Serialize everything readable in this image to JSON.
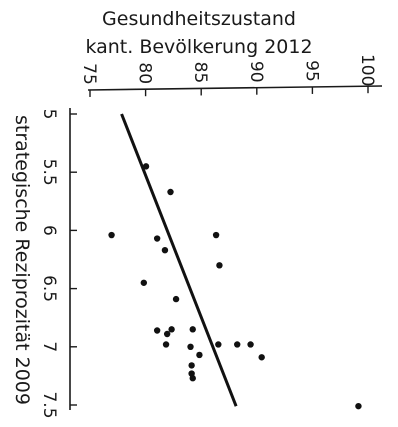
{
  "chart_data": {
    "type": "scatter",
    "title_lines": [
      "Gesundheitszustand",
      "kant. Bevölkerung 2012"
    ],
    "xlabel": "strategische Reziprozität 2009",
    "x_ticks": [
      "5",
      "5.5",
      "6",
      "6.5",
      "7",
      "7.5"
    ],
    "y_ticks": [
      "75",
      "80",
      "85",
      "90",
      "95",
      "100"
    ],
    "xlim": [
      5,
      7.5
    ],
    "ylim": [
      75,
      100
    ],
    "grid": false,
    "legend": "none",
    "points": [
      {
        "x": 5.45,
        "y": 79.5
      },
      {
        "x": 5.67,
        "y": 81.7
      },
      {
        "x": 6.04,
        "y": 76.4
      },
      {
        "x": 6.07,
        "y": 80.5
      },
      {
        "x": 6.17,
        "y": 81.2
      },
      {
        "x": 6.04,
        "y": 85.8
      },
      {
        "x": 6.3,
        "y": 86.1
      },
      {
        "x": 6.45,
        "y": 79.3
      },
      {
        "x": 6.59,
        "y": 82.2
      },
      {
        "x": 6.86,
        "y": 80.5
      },
      {
        "x": 6.89,
        "y": 81.4
      },
      {
        "x": 6.98,
        "y": 81.3
      },
      {
        "x": 6.85,
        "y": 81.8
      },
      {
        "x": 6.85,
        "y": 83.7
      },
      {
        "x": 7.0,
        "y": 83.5
      },
      {
        "x": 6.98,
        "y": 86.0
      },
      {
        "x": 7.07,
        "y": 84.3
      },
      {
        "x": 6.98,
        "y": 87.7
      },
      {
        "x": 6.98,
        "y": 88.9
      },
      {
        "x": 7.09,
        "y": 89.9
      },
      {
        "x": 7.16,
        "y": 83.6
      },
      {
        "x": 7.23,
        "y": 83.6
      },
      {
        "x": 7.27,
        "y": 83.7
      },
      {
        "x": 7.51,
        "y": 98.6
      }
    ],
    "trendline": {
      "x": [
        5,
        7.51
      ],
      "y": [
        77.3,
        87.6
      ]
    }
  }
}
